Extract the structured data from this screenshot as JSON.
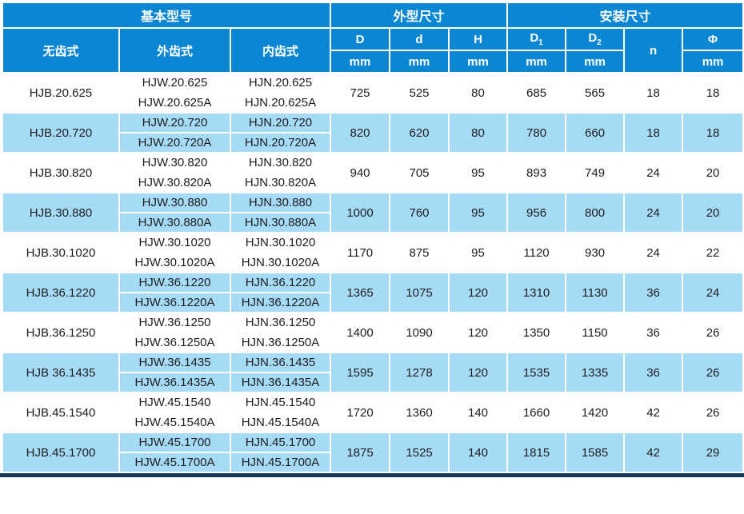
{
  "colors": {
    "header_bg": "#0b86d3",
    "alt_row_bg": "#a6dbf6",
    "bottom_bar": "#17375e",
    "header_text": "#ffffff",
    "body_text": "#1c1c1e"
  },
  "header": {
    "groups": [
      {
        "label": "基本型号",
        "span": 3
      },
      {
        "label": "外型尺寸",
        "span": 3
      },
      {
        "label": "安装尺寸",
        "span": 4
      }
    ],
    "model_cols": [
      "无齿式",
      "外齿式",
      "内齿式"
    ],
    "dims": [
      {
        "name": "D",
        "sub": "",
        "unit": "mm"
      },
      {
        "name": "d",
        "sub": "",
        "unit": "mm"
      },
      {
        "name": "H",
        "sub": "",
        "unit": "mm"
      },
      {
        "name": "D",
        "sub": "1",
        "unit": "mm"
      },
      {
        "name": "D",
        "sub": "2",
        "unit": "mm"
      },
      {
        "name": "n",
        "sub": "",
        "unit": ""
      },
      {
        "name": "Φ",
        "sub": "",
        "unit": "mm"
      }
    ]
  },
  "rows": [
    {
      "hjb": "HJB.20.625",
      "hjw": [
        "HJW.20.625",
        "HJW.20.625A"
      ],
      "hjn": [
        "HJN.20.625",
        "HJN.20.625A"
      ],
      "values": [
        "725",
        "525",
        "80",
        "685",
        "565",
        "18",
        "18"
      ]
    },
    {
      "hjb": "HJB.20.720",
      "hjw": [
        "HJW.20.720",
        "HJW.20.720A"
      ],
      "hjn": [
        "HJN.20.720",
        "HJN.20.720A"
      ],
      "values": [
        "820",
        "620",
        "80",
        "780",
        "660",
        "18",
        "18"
      ]
    },
    {
      "hjb": "HJB.30.820",
      "hjw": [
        "HJW.30.820",
        "HJW.30.820A"
      ],
      "hjn": [
        "HJN.30.820",
        "HJN.30.820A"
      ],
      "values": [
        "940",
        "705",
        "95",
        "893",
        "749",
        "24",
        "20"
      ]
    },
    {
      "hjb": "HJB.30.880",
      "hjw": [
        "HJW.30.880",
        "HJW.30.880A"
      ],
      "hjn": [
        "HJN.30.880",
        "HJN.30.880A"
      ],
      "values": [
        "1000",
        "760",
        "95",
        "956",
        "800",
        "24",
        "20"
      ]
    },
    {
      "hjb": "HJB.30.1020",
      "hjw": [
        "HJW.30.1020",
        "HJW.30.1020A"
      ],
      "hjn": [
        "HJN.30.1020",
        "HJN.30.1020A"
      ],
      "values": [
        "1170",
        "875",
        "95",
        "1120",
        "930",
        "24",
        "22"
      ]
    },
    {
      "hjb": "HJB.36.1220",
      "hjw": [
        "HJW.36.1220",
        "HJW.36.1220A"
      ],
      "hjn": [
        "HJN.36.1220",
        "HJN.36.1220A"
      ],
      "values": [
        "1365",
        "1075",
        "120",
        "1310",
        "1130",
        "36",
        "24"
      ]
    },
    {
      "hjb": "HJB.36.1250",
      "hjw": [
        "HJW.36.1250",
        "HJW.36.1250A"
      ],
      "hjn": [
        "HJN.36.1250",
        "HJN.36.1250A"
      ],
      "values": [
        "1400",
        "1090",
        "120",
        "1350",
        "1150",
        "36",
        "26"
      ]
    },
    {
      "hjb": "HJB 36.1435",
      "hjw": [
        "HJW.36.1435",
        "HJW.36.1435A"
      ],
      "hjn": [
        "HJN.36.1435",
        "HJN.36.1435A"
      ],
      "values": [
        "1595",
        "1278",
        "120",
        "1535",
        "1335",
        "36",
        "26"
      ]
    },
    {
      "hjb": "HJB.45.1540",
      "hjw": [
        "HJW.45.1540",
        "HJW.45.1540A"
      ],
      "hjn": [
        "HJN.45.1540",
        "HJN.45.1540A"
      ],
      "values": [
        "1720",
        "1360",
        "140",
        "1660",
        "1420",
        "42",
        "26"
      ]
    },
    {
      "hjb": "HJB.45.1700",
      "hjw": [
        "HJW.45.1700",
        "HJW.45.1700A"
      ],
      "hjn": [
        "HJN.45.1700",
        "HJN.45.1700A"
      ],
      "values": [
        "1875",
        "1525",
        "140",
        "1815",
        "1585",
        "42",
        "29"
      ]
    }
  ]
}
